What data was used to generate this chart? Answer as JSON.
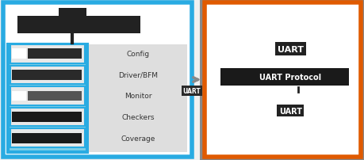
{
  "fig_bg": "#f0f0f0",
  "left_box_border": "#29ABE2",
  "left_box_bg": "white",
  "right_box_border_orange": "#E05A00",
  "right_box_border_gray": "#888888",
  "right_box_bg": "white",
  "cyan_panel_border": "#29ABE2",
  "cyan_panel_bg": "#7ecfe8",
  "gray_panel_bg": "#dedede",
  "row_border": "#29ABE2",
  "row_bg": "#e8e8e8",
  "arrow_color": "#888888",
  "left_labels": [
    "Config",
    "Driver/BFM",
    "Monitor",
    "Checkers",
    "Coverage"
  ],
  "row_dark_colors": [
    "#2a2a2a",
    "#2a2a2a",
    "#555555",
    "#1a1a1a",
    "#1a1a1a"
  ],
  "row_has_white_left": [
    true,
    false,
    true,
    false,
    false
  ],
  "title_icon_color": "#222222",
  "right_text1": "UART",
  "right_text2": "UART Protocol",
  "right_text3": "UART",
  "arrow_mid_label": "UART"
}
